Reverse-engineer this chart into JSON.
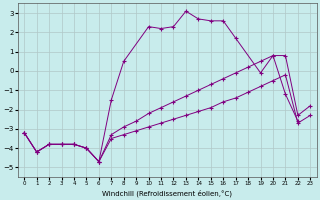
{
  "title": "",
  "xlabel": "Windchill (Refroidissement éolien,°C)",
  "background_color": "#c8ecec",
  "line_color": "#800080",
  "series": [
    {
      "x": [
        0,
        1,
        2,
        3,
        4,
        5,
        6,
        7,
        8,
        10,
        11,
        12,
        13,
        14,
        15,
        16,
        17,
        19,
        20,
        21,
        22
      ],
      "y": [
        -3.2,
        -4.2,
        -3.8,
        -3.8,
        -3.8,
        -4.0,
        -4.7,
        -1.5,
        0.5,
        2.3,
        2.2,
        2.3,
        3.1,
        2.7,
        2.6,
        2.6,
        1.7,
        -0.1,
        0.8,
        -1.2,
        -2.6
      ]
    },
    {
      "x": [
        0,
        1,
        2,
        3,
        4,
        5,
        6,
        7,
        8,
        9,
        10,
        11,
        12,
        13,
        14,
        15,
        16,
        17,
        18,
        19,
        20,
        21,
        22,
        23
      ],
      "y": [
        -3.2,
        -4.2,
        -3.8,
        -3.8,
        -3.8,
        -4.0,
        -4.7,
        -3.3,
        -2.9,
        -2.6,
        -2.2,
        -1.9,
        -1.6,
        -1.3,
        -1.0,
        -0.7,
        -0.4,
        -0.1,
        0.2,
        0.5,
        0.8,
        0.8,
        -2.3,
        -1.8
      ]
    },
    {
      "x": [
        0,
        1,
        2,
        3,
        4,
        5,
        6,
        7,
        8,
        9,
        10,
        11,
        12,
        13,
        14,
        15,
        16,
        17,
        18,
        19,
        20,
        21,
        22,
        23
      ],
      "y": [
        -3.2,
        -4.2,
        -3.8,
        -3.8,
        -3.8,
        -4.0,
        -4.7,
        -3.5,
        -3.3,
        -3.1,
        -2.9,
        -2.7,
        -2.5,
        -2.3,
        -2.1,
        -1.9,
        -1.6,
        -1.4,
        -1.1,
        -0.8,
        -0.5,
        -0.2,
        -2.7,
        -2.3
      ]
    }
  ],
  "xlim": [
    -0.5,
    23.5
  ],
  "ylim": [
    -5.5,
    3.5
  ],
  "yticks": [
    -5,
    -4,
    -3,
    -2,
    -1,
    0,
    1,
    2,
    3
  ],
  "xticks": [
    0,
    1,
    2,
    3,
    4,
    5,
    6,
    7,
    8,
    9,
    10,
    11,
    12,
    13,
    14,
    15,
    16,
    17,
    18,
    19,
    20,
    21,
    22,
    23
  ],
  "grid_color": "#b0c8c8",
  "marker": "+",
  "figsize": [
    3.2,
    2.0
  ],
  "dpi": 100
}
